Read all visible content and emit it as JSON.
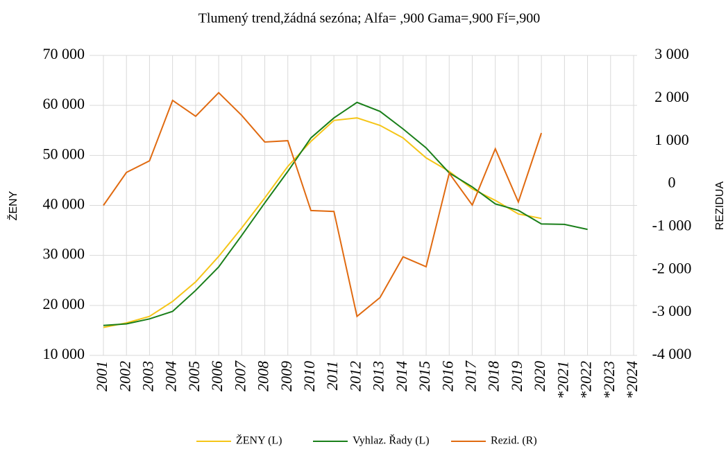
{
  "chart_data": {
    "type": "line",
    "title": "Tlumený trend,žádná sezóna; Alfa=  ,900 Gama=,900 Fí=,900",
    "y_label": "ŽENY",
    "y2_label": "REZIDUA",
    "categories": [
      "2001",
      "2002",
      "2003",
      "2004",
      "2005",
      "2006",
      "2007",
      "2008",
      "2009",
      "2010",
      "2011",
      "2012",
      "2013",
      "2014",
      "2015",
      "2016",
      "2017",
      "2018",
      "2019",
      "2020",
      "*2021",
      "*2022",
      "*2023",
      "*2024"
    ],
    "ylim": [
      10000,
      70000
    ],
    "yticks": [
      {
        "value": 10000,
        "label": "10 000"
      },
      {
        "value": 20000,
        "label": "20 000"
      },
      {
        "value": 30000,
        "label": "30 000"
      },
      {
        "value": 40000,
        "label": "40 000"
      },
      {
        "value": 50000,
        "label": "50 000"
      },
      {
        "value": 60000,
        "label": "60 000"
      },
      {
        "value": 70000,
        "label": "70 000"
      }
    ],
    "y2lim": [
      -4000,
      3000
    ],
    "y2ticks": [
      {
        "value": -4000,
        "label": "-4 000"
      },
      {
        "value": -3000,
        "label": "-3 000"
      },
      {
        "value": -2000,
        "label": "-2 000"
      },
      {
        "value": -1000,
        "label": "-1 000"
      },
      0,
      {
        "value": 1000,
        "label": "1 000"
      },
      {
        "value": 2000,
        "label": "2 000"
      },
      {
        "value": 3000,
        "label": "3 000"
      }
    ],
    "grid": true,
    "legend": "bottom",
    "series": [
      {
        "name": "ŽENY (L)",
        "color": "#f5c518",
        "axis": "y",
        "values": [
          15600,
          16500,
          17800,
          20800,
          24700,
          29800,
          35500,
          41500,
          47800,
          52800,
          57000,
          57500,
          56000,
          53500,
          49500,
          46800,
          43300,
          41000,
          38300,
          37400,
          null,
          null,
          null,
          null
        ]
      },
      {
        "name": "Vyhlaz. Řady (L)",
        "color": "#1a7f1a",
        "axis": "y",
        "values": [
          16000,
          16300,
          17300,
          18800,
          23000,
          27700,
          34000,
          40500,
          46800,
          53500,
          57500,
          60600,
          58800,
          55300,
          51500,
          46500,
          43700,
          40300,
          39000,
          36300,
          36200,
          35200,
          null,
          null
        ]
      },
      {
        "name": "Rezid. (R)",
        "color": "#e06a10",
        "axis": "y2",
        "values": [
          -500,
          270,
          540,
          1950,
          1580,
          2130,
          1600,
          980,
          1010,
          -620,
          -640,
          -3090,
          -2650,
          -1700,
          -1930,
          250,
          -490,
          820,
          -420,
          1190,
          null,
          null,
          null,
          null
        ]
      }
    ]
  }
}
